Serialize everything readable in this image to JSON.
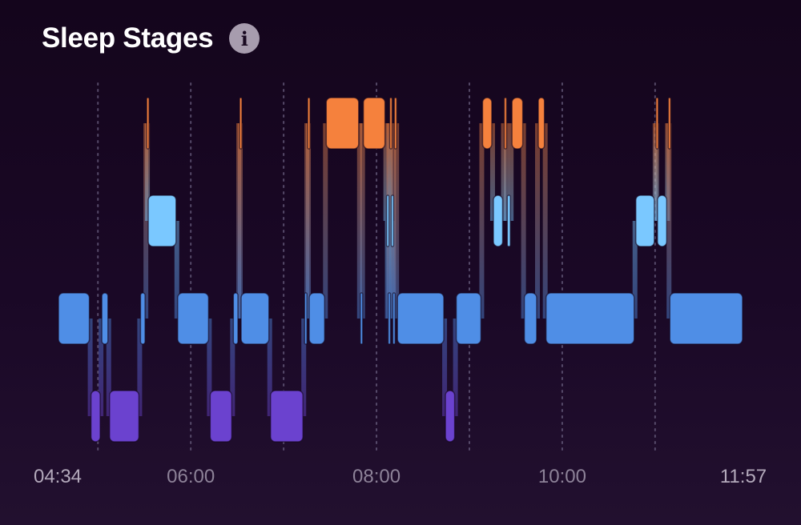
{
  "header": {
    "title": "Sleep Stages",
    "info_icon": "info-icon"
  },
  "colors": {
    "awake": "#f5813d",
    "rem": "#7ac8ff",
    "core": "#4f8ee6",
    "deep": "#6b42cf",
    "connector": "#3b3566",
    "background": "#14051c"
  },
  "chart_data": {
    "type": "timeline",
    "title": "Sleep Stages",
    "start_time": "04:34",
    "end_time": "11:57",
    "stages": [
      "Awake",
      "REM",
      "Core",
      "Deep"
    ],
    "tick_labels": [
      "04:34",
      "06:00",
      "08:00",
      "10:00",
      "11:57"
    ],
    "gridline_times": [
      "05:00",
      "06:00",
      "07:00",
      "08:00",
      "09:00",
      "10:00",
      "11:00"
    ],
    "segments": [
      {
        "stage": "Core",
        "start": "04:34",
        "end": "04:55"
      },
      {
        "stage": "Deep",
        "start": "04:55",
        "end": "05:02"
      },
      {
        "stage": "Core",
        "start": "05:02",
        "end": "05:07"
      },
      {
        "stage": "Deep",
        "start": "05:07",
        "end": "05:27"
      },
      {
        "stage": "Core",
        "start": "05:27",
        "end": "05:31"
      },
      {
        "stage": "Awake",
        "start": "05:31",
        "end": "05:32"
      },
      {
        "stage": "REM",
        "start": "05:32",
        "end": "05:51"
      },
      {
        "stage": "Core",
        "start": "05:51",
        "end": "06:12"
      },
      {
        "stage": "Deep",
        "start": "06:12",
        "end": "06:27"
      },
      {
        "stage": "Core",
        "start": "06:27",
        "end": "06:31"
      },
      {
        "stage": "Awake",
        "start": "06:31",
        "end": "06:32"
      },
      {
        "stage": "Core",
        "start": "06:32",
        "end": "06:51"
      },
      {
        "stage": "Deep",
        "start": "06:51",
        "end": "07:13"
      },
      {
        "stage": "Core",
        "start": "07:13",
        "end": "07:15"
      },
      {
        "stage": "Awake",
        "start": "07:15",
        "end": "07:16"
      },
      {
        "stage": "Core",
        "start": "07:16",
        "end": "07:27"
      },
      {
        "stage": "Awake",
        "start": "07:27",
        "end": "07:49"
      },
      {
        "stage": "Core",
        "start": "07:49",
        "end": "07:51"
      },
      {
        "stage": "Awake",
        "start": "07:51",
        "end": "08:06"
      },
      {
        "stage": "REM",
        "start": "08:06",
        "end": "08:07"
      },
      {
        "stage": "Core",
        "start": "08:07",
        "end": "08:08"
      },
      {
        "stage": "Awake",
        "start": "08:08",
        "end": "08:09"
      },
      {
        "stage": "REM",
        "start": "08:09",
        "end": "08:10"
      },
      {
        "stage": "Core",
        "start": "08:10",
        "end": "08:11"
      },
      {
        "stage": "Awake",
        "start": "08:11",
        "end": "08:13"
      },
      {
        "stage": "Core",
        "start": "08:13",
        "end": "08:44"
      },
      {
        "stage": "Deep",
        "start": "08:44",
        "end": "08:51"
      },
      {
        "stage": "Core",
        "start": "08:51",
        "end": "09:08"
      },
      {
        "stage": "Awake",
        "start": "09:08",
        "end": "09:15"
      },
      {
        "stage": "REM",
        "start": "09:15",
        "end": "09:22"
      },
      {
        "stage": "Awake",
        "start": "09:22",
        "end": "09:24"
      },
      {
        "stage": "REM",
        "start": "09:24",
        "end": "09:27"
      },
      {
        "stage": "Awake",
        "start": "09:27",
        "end": "09:35"
      },
      {
        "stage": "Core",
        "start": "09:35",
        "end": "09:44"
      },
      {
        "stage": "Awake",
        "start": "09:44",
        "end": "09:49"
      },
      {
        "stage": "Core",
        "start": "09:49",
        "end": "10:47"
      },
      {
        "stage": "REM",
        "start": "10:47",
        "end": "11:00"
      },
      {
        "stage": "Awake",
        "start": "11:00",
        "end": "11:01"
      },
      {
        "stage": "REM",
        "start": "11:01",
        "end": "11:08"
      },
      {
        "stage": "Awake",
        "start": "11:08",
        "end": "11:09"
      },
      {
        "stage": "Core",
        "start": "11:09",
        "end": "11:57"
      }
    ]
  }
}
